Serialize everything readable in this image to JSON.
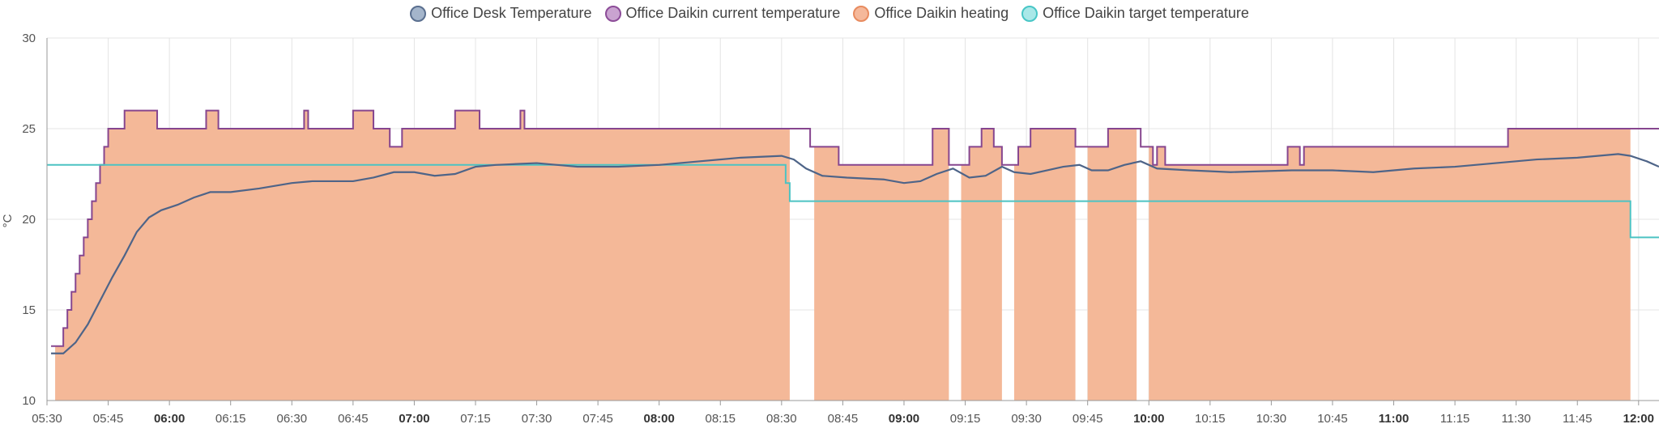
{
  "legend": [
    {
      "label": "Office Desk Temperature",
      "fill": "#a4b5cb",
      "stroke": "#5a6f8f"
    },
    {
      "label": "Office Daikin current temperature",
      "fill": "#c9a3d0",
      "stroke": "#8c4c98"
    },
    {
      "label": "Office Daikin heating",
      "fill": "#f5b89a",
      "stroke": "#e88b5f"
    },
    {
      "label": "Office Daikin target temperature",
      "fill": "#a9e8e8",
      "stroke": "#48c6c6"
    }
  ],
  "colors": {
    "desk": "#4e6488",
    "current": "#86468f",
    "heating": "#f4b898",
    "target": "#4cc3c3",
    "target_overlap": "#7d9a76",
    "grid": "#e4e4e4",
    "axis_text": "#555555"
  },
  "chart_data": {
    "type": "line",
    "ylabel": "°C",
    "ylim": [
      10,
      30
    ],
    "yticks": [
      10,
      15,
      20,
      25,
      30
    ],
    "xlim": [
      "05:30",
      "12:05"
    ],
    "xticks": [
      {
        "label": "05:30",
        "bold": false
      },
      {
        "label": "05:45",
        "bold": false
      },
      {
        "label": "06:00",
        "bold": true
      },
      {
        "label": "06:15",
        "bold": false
      },
      {
        "label": "06:30",
        "bold": false
      },
      {
        "label": "06:45",
        "bold": false
      },
      {
        "label": "07:00",
        "bold": true
      },
      {
        "label": "07:15",
        "bold": false
      },
      {
        "label": "07:30",
        "bold": false
      },
      {
        "label": "07:45",
        "bold": false
      },
      {
        "label": "08:00",
        "bold": true
      },
      {
        "label": "08:15",
        "bold": false
      },
      {
        "label": "08:30",
        "bold": false
      },
      {
        "label": "08:45",
        "bold": false
      },
      {
        "label": "09:00",
        "bold": true
      },
      {
        "label": "09:15",
        "bold": false
      },
      {
        "label": "09:30",
        "bold": false
      },
      {
        "label": "09:45",
        "bold": false
      },
      {
        "label": "10:00",
        "bold": true
      },
      {
        "label": "10:15",
        "bold": false
      },
      {
        "label": "10:30",
        "bold": false
      },
      {
        "label": "10:45",
        "bold": false
      },
      {
        "label": "11:00",
        "bold": true
      },
      {
        "label": "11:15",
        "bold": false
      },
      {
        "label": "11:30",
        "bold": false
      },
      {
        "label": "11:45",
        "bold": false
      },
      {
        "label": "12:00",
        "bold": true
      }
    ],
    "heating_on": [
      [
        "05:32",
        "08:32"
      ],
      [
        "08:38",
        "09:11"
      ],
      [
        "09:14",
        "09:24"
      ],
      [
        "09:27",
        "09:42"
      ],
      [
        "09:45",
        "09:57"
      ],
      [
        "10:00",
        "11:58"
      ]
    ],
    "series": [
      {
        "name": "Office Daikin current temperature",
        "step": true,
        "points": [
          [
            "05:31",
            13
          ],
          [
            "05:34",
            14
          ],
          [
            "05:35",
            15
          ],
          [
            "05:36",
            16
          ],
          [
            "05:37",
            17
          ],
          [
            "05:38",
            18
          ],
          [
            "05:39",
            19
          ],
          [
            "05:40",
            20
          ],
          [
            "05:41",
            21
          ],
          [
            "05:42",
            22
          ],
          [
            "05:43",
            23
          ],
          [
            "05:44",
            24
          ],
          [
            "05:45",
            25
          ],
          [
            "05:49",
            26
          ],
          [
            "05:57",
            25
          ],
          [
            "06:09",
            26
          ],
          [
            "06:12",
            25
          ],
          [
            "06:33",
            26
          ],
          [
            "06:34",
            25
          ],
          [
            "06:45",
            26
          ],
          [
            "06:50",
            25
          ],
          [
            "06:54",
            24
          ],
          [
            "06:57",
            25
          ],
          [
            "07:06",
            25
          ],
          [
            "07:10",
            26
          ],
          [
            "07:16",
            25
          ],
          [
            "07:26",
            26
          ],
          [
            "07:27",
            25
          ],
          [
            "08:37",
            24
          ],
          [
            "08:42",
            24
          ],
          [
            "08:44",
            23
          ],
          [
            "09:07",
            25
          ],
          [
            "09:11",
            23
          ],
          [
            "09:16",
            24
          ],
          [
            "09:19",
            25
          ],
          [
            "09:22",
            24
          ],
          [
            "09:24",
            23
          ],
          [
            "09:28",
            24
          ],
          [
            "09:31",
            25
          ],
          [
            "09:42",
            24
          ],
          [
            "09:50",
            25
          ],
          [
            "09:58",
            24
          ],
          [
            "10:01",
            23
          ],
          [
            "10:02",
            24
          ],
          [
            "10:04",
            23
          ],
          [
            "10:34",
            24
          ],
          [
            "10:37",
            23
          ],
          [
            "10:38",
            24
          ],
          [
            "11:28",
            25
          ],
          [
            "12:05",
            25
          ]
        ]
      },
      {
        "name": "Office Daikin target temperature",
        "step": true,
        "points": [
          [
            "05:30",
            23
          ],
          [
            "08:31",
            22
          ],
          [
            "08:32",
            21
          ],
          [
            "11:58",
            19
          ],
          [
            "12:05",
            19
          ]
        ]
      },
      {
        "name": "Office Desk Temperature",
        "step": false,
        "points": [
          [
            "05:31",
            12.6
          ],
          [
            "05:34",
            12.6
          ],
          [
            "05:37",
            13.2
          ],
          [
            "05:40",
            14.2
          ],
          [
            "05:43",
            15.5
          ],
          [
            "05:46",
            16.8
          ],
          [
            "05:49",
            18.0
          ],
          [
            "05:52",
            19.3
          ],
          [
            "05:55",
            20.1
          ],
          [
            "05:58",
            20.5
          ],
          [
            "06:02",
            20.8
          ],
          [
            "06:06",
            21.2
          ],
          [
            "06:10",
            21.5
          ],
          [
            "06:15",
            21.5
          ],
          [
            "06:22",
            21.7
          ],
          [
            "06:30",
            22.0
          ],
          [
            "06:35",
            22.1
          ],
          [
            "06:45",
            22.1
          ],
          [
            "06:50",
            22.3
          ],
          [
            "06:55",
            22.6
          ],
          [
            "07:00",
            22.6
          ],
          [
            "07:05",
            22.4
          ],
          [
            "07:10",
            22.5
          ],
          [
            "07:15",
            22.9
          ],
          [
            "07:20",
            23.0
          ],
          [
            "07:30",
            23.1
          ],
          [
            "07:40",
            22.9
          ],
          [
            "07:50",
            22.9
          ],
          [
            "08:00",
            23.0
          ],
          [
            "08:10",
            23.2
          ],
          [
            "08:20",
            23.4
          ],
          [
            "08:30",
            23.5
          ],
          [
            "08:33",
            23.3
          ],
          [
            "08:36",
            22.8
          ],
          [
            "08:40",
            22.4
          ],
          [
            "08:46",
            22.3
          ],
          [
            "08:55",
            22.2
          ],
          [
            "09:00",
            22.0
          ],
          [
            "09:04",
            22.1
          ],
          [
            "09:08",
            22.5
          ],
          [
            "09:12",
            22.8
          ],
          [
            "09:16",
            22.3
          ],
          [
            "09:20",
            22.4
          ],
          [
            "09:24",
            22.9
          ],
          [
            "09:27",
            22.6
          ],
          [
            "09:31",
            22.5
          ],
          [
            "09:35",
            22.7
          ],
          [
            "09:39",
            22.9
          ],
          [
            "09:43",
            23.0
          ],
          [
            "09:46",
            22.7
          ],
          [
            "09:50",
            22.7
          ],
          [
            "09:54",
            23.0
          ],
          [
            "09:58",
            23.2
          ],
          [
            "10:02",
            22.8
          ],
          [
            "10:10",
            22.7
          ],
          [
            "10:20",
            22.6
          ],
          [
            "10:35",
            22.7
          ],
          [
            "10:45",
            22.7
          ],
          [
            "10:55",
            22.6
          ],
          [
            "11:05",
            22.8
          ],
          [
            "11:15",
            22.9
          ],
          [
            "11:25",
            23.1
          ],
          [
            "11:35",
            23.3
          ],
          [
            "11:45",
            23.4
          ],
          [
            "11:55",
            23.6
          ],
          [
            "11:58",
            23.5
          ],
          [
            "12:02",
            23.2
          ],
          [
            "12:05",
            22.9
          ]
        ]
      }
    ]
  }
}
